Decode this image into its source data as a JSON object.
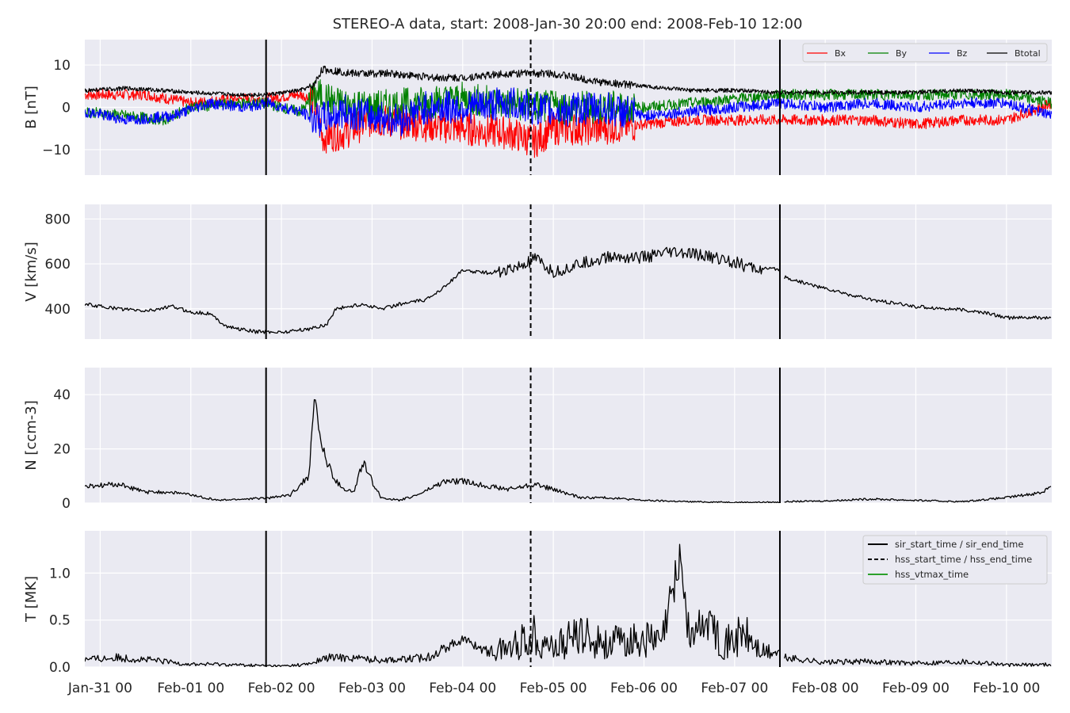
{
  "title": "STEREO-A data, start: 2008-Jan-30 20:00  end: 2008-Feb-10 12:00",
  "colors": {
    "background": "#eaeaf2",
    "grid": "#ffffff",
    "text": "#262626",
    "Bx": "#ff0000",
    "By": "#008000",
    "Bz": "#0000ff",
    "Btotal": "#000000",
    "vtmax": "#2ca02c"
  },
  "xaxis": {
    "unit": "days since 2008-Jan-31 00:00",
    "range": [
      -0.17,
      10.5
    ],
    "ticks": [
      {
        "value": 0,
        "label": "Jan-31 00"
      },
      {
        "value": 1,
        "label": "Feb-01 00"
      },
      {
        "value": 2,
        "label": "Feb-02 00"
      },
      {
        "value": 3,
        "label": "Feb-03 00"
      },
      {
        "value": 4,
        "label": "Feb-04 00"
      },
      {
        "value": 5,
        "label": "Feb-05 00"
      },
      {
        "value": 6,
        "label": "Feb-06 00"
      },
      {
        "value": 7,
        "label": "Feb-07 00"
      },
      {
        "value": 8,
        "label": "Feb-08 00"
      },
      {
        "value": 9,
        "label": "Feb-09 00"
      },
      {
        "value": 10,
        "label": "Feb-10 00"
      }
    ]
  },
  "legends": {
    "b": [
      "Bx",
      "By",
      "Bz",
      "Btotal"
    ],
    "t": [
      "sir_start_time / sir_end_time",
      "hss_start_time / hss_end_time",
      "hss_vtmax_time"
    ]
  },
  "chart_data": [
    {
      "type": "line",
      "panel": "B",
      "ylabel": "B [nT]",
      "ylim": [
        -16,
        16
      ],
      "yticks": [
        -10,
        0,
        10
      ],
      "yticklabels": [
        "−10",
        "0",
        "10"
      ],
      "grid": true,
      "legend": "top-right",
      "series": [
        {
          "name": "Bx",
          "color": "#ff0000",
          "x": [
            -0.17,
            0.5,
            1,
            1.5,
            1.8,
            2.2,
            2.35,
            2.45,
            2.7,
            3.0,
            3.5,
            4.0,
            4.5,
            4.8,
            5.0,
            5.5,
            6.0,
            6.5,
            7.0,
            7.5,
            8.0,
            8.5,
            9.0,
            9.5,
            10.0,
            10.5
          ],
          "y": [
            3,
            3,
            1,
            2,
            2,
            3,
            2,
            -7,
            -6,
            -3,
            -4,
            -5,
            -6,
            -8,
            -5,
            -5,
            -4,
            -3,
            -3,
            -3,
            -3,
            -3,
            -4,
            -3,
            -3,
            1
          ]
        },
        {
          "name": "By",
          "color": "#008000",
          "x": [
            -0.17,
            0.3,
            0.7,
            1.0,
            1.5,
            1.8,
            2.2,
            2.4,
            2.6,
            3.0,
            3.5,
            4.0,
            4.5,
            5.0,
            5.5,
            6.0,
            6.5,
            7.0,
            7.5,
            8.0,
            8.5,
            9.0,
            9.5,
            10.0,
            10.5
          ],
          "y": [
            -1,
            -2,
            -3,
            0,
            1,
            1,
            -1,
            3,
            1,
            0,
            1,
            2,
            1,
            0,
            0,
            0,
            1,
            2,
            3,
            3,
            3,
            3,
            3,
            3,
            1
          ]
        },
        {
          "name": "Bz",
          "color": "#0000ff",
          "x": [
            -0.17,
            0.3,
            0.8,
            1.2,
            1.6,
            1.85,
            2.2,
            2.4,
            2.7,
            3.0,
            3.3,
            3.6,
            4.0,
            4.5,
            5.0,
            5.5,
            6.0,
            6.5,
            7.0,
            7.5,
            8.0,
            8.5,
            9.0,
            9.5,
            10.0,
            10.5
          ],
          "y": [
            -1,
            -3,
            -2,
            1,
            0,
            1,
            -1,
            -3,
            -1,
            -2,
            -3,
            0,
            0,
            1,
            -1,
            0,
            -2,
            -1,
            0,
            1,
            0,
            1,
            0,
            1,
            1,
            -2
          ]
        },
        {
          "name": "Btotal",
          "color": "#000000",
          "x": [
            -0.17,
            0.3,
            0.7,
            1.0,
            1.5,
            1.85,
            2.2,
            2.35,
            2.45,
            2.8,
            3.2,
            3.7,
            4.0,
            4.5,
            5.0,
            5.5,
            6.0,
            6.5,
            7.0,
            7.5,
            8.0,
            8.5,
            9.0,
            9.5,
            10.0,
            10.5
          ],
          "y": [
            4,
            4.5,
            4,
            3.5,
            3,
            3,
            4,
            5,
            9,
            8,
            8,
            7,
            7,
            8,
            8,
            6,
            5,
            4,
            4,
            3.5,
            3.5,
            3.5,
            3.5,
            4,
            3.5,
            3.5
          ]
        }
      ]
    },
    {
      "type": "line",
      "panel": "V",
      "ylabel": "V [km/s]",
      "ylim": [
        265,
        865
      ],
      "yticks": [
        400,
        600,
        800
      ],
      "yticklabels": [
        "400",
        "600",
        "800"
      ],
      "grid": true,
      "series": [
        {
          "x": [
            -0.17,
            0.2,
            0.5,
            0.8,
            1.0,
            1.2,
            1.4,
            1.7,
            2.0,
            2.3,
            2.5,
            2.6,
            2.9,
            3.1,
            3.3,
            3.6,
            3.8,
            4.0,
            4.3,
            4.6,
            4.8,
            5.0,
            5.3,
            5.6,
            6.0,
            6.3,
            6.6,
            6.9,
            7.2,
            7.5
          ],
          "y": [
            420,
            400,
            390,
            410,
            385,
            380,
            320,
            298,
            296,
            310,
            330,
            400,
            420,
            400,
            420,
            440,
            500,
            570,
            560,
            580,
            620,
            560,
            600,
            630,
            630,
            650,
            640,
            620,
            580,
            575
          ]
        },
        {
          "x": [
            7.55,
            8.0,
            8.5,
            9.0,
            9.5,
            9.8,
            10.0,
            10.5
          ],
          "y": [
            540,
            490,
            440,
            410,
            395,
            380,
            360,
            360
          ]
        }
      ]
    },
    {
      "type": "line",
      "panel": "N",
      "ylabel": "N [ccm-3]",
      "ylim": [
        0,
        50
      ],
      "yticks": [
        0,
        20,
        40
      ],
      "yticklabels": [
        "0",
        "20",
        "40"
      ],
      "grid": true,
      "series": [
        {
          "x": [
            -0.17,
            0.2,
            0.5,
            0.8,
            1.0,
            1.3,
            1.6,
            1.9,
            2.1,
            2.3,
            2.37,
            2.42,
            2.5,
            2.6,
            2.7,
            2.8,
            2.9,
            3.0,
            3.1,
            3.3,
            3.5,
            3.8,
            4.0,
            4.5,
            4.8,
            5.0,
            5.3,
            5.6,
            6.0,
            6.5,
            7.0,
            7.5
          ],
          "y": [
            6,
            7,
            4,
            4,
            3,
            1,
            1.5,
            2,
            3,
            10,
            40,
            25,
            15,
            8,
            5,
            4,
            15,
            8,
            2,
            1,
            3,
            8,
            8,
            5,
            7,
            5,
            2,
            2,
            1,
            0.5,
            0.3,
            0.3
          ]
        },
        {
          "x": [
            7.55,
            8.0,
            8.5,
            9.0,
            9.5,
            10.0,
            10.4,
            10.5
          ],
          "y": [
            0.5,
            0.8,
            1.5,
            1,
            0.5,
            2,
            4,
            7
          ]
        }
      ]
    },
    {
      "type": "line",
      "panel": "T",
      "ylabel": "T [MK]",
      "ylim": [
        0,
        1.45
      ],
      "yticks": [
        0,
        0.5,
        1.0
      ],
      "yticklabels": [
        "0.0",
        "0.5",
        "1.0"
      ],
      "grid": true,
      "legend": "top-right",
      "series": [
        {
          "x": [
            -0.17,
            0.2,
            0.5,
            0.8,
            1.0,
            1.3,
            1.6,
            2.0,
            2.3,
            2.5,
            2.8,
            3.0,
            3.3,
            3.6,
            3.9,
            4.0,
            4.3,
            4.6,
            4.8,
            5.0,
            5.3,
            5.6,
            6.0,
            6.2,
            6.4,
            6.5,
            6.7,
            6.9,
            7.1,
            7.3,
            7.5
          ],
          "y": [
            0.08,
            0.1,
            0.08,
            0.05,
            0.03,
            0.03,
            0.02,
            0.01,
            0.03,
            0.1,
            0.1,
            0.08,
            0.08,
            0.1,
            0.25,
            0.3,
            0.15,
            0.25,
            0.35,
            0.2,
            0.35,
            0.25,
            0.3,
            0.25,
            1.2,
            0.3,
            0.5,
            0.25,
            0.35,
            0.15,
            0.15
          ]
        },
        {
          "x": [
            7.55,
            8.0,
            8.5,
            9.0,
            9.5,
            9.85,
            10.0,
            10.5
          ],
          "y": [
            0.1,
            0.05,
            0.06,
            0.04,
            0.06,
            0.04,
            0.02,
            0.03
          ]
        }
      ]
    }
  ],
  "markers": [
    {
      "name": "sir_start_time",
      "x": 1.83,
      "style": "solid"
    },
    {
      "name": "hss_start_time",
      "x": 4.75,
      "style": "dashed"
    },
    {
      "name": "sir_end_time",
      "x": 7.5,
      "style": "solid"
    }
  ]
}
